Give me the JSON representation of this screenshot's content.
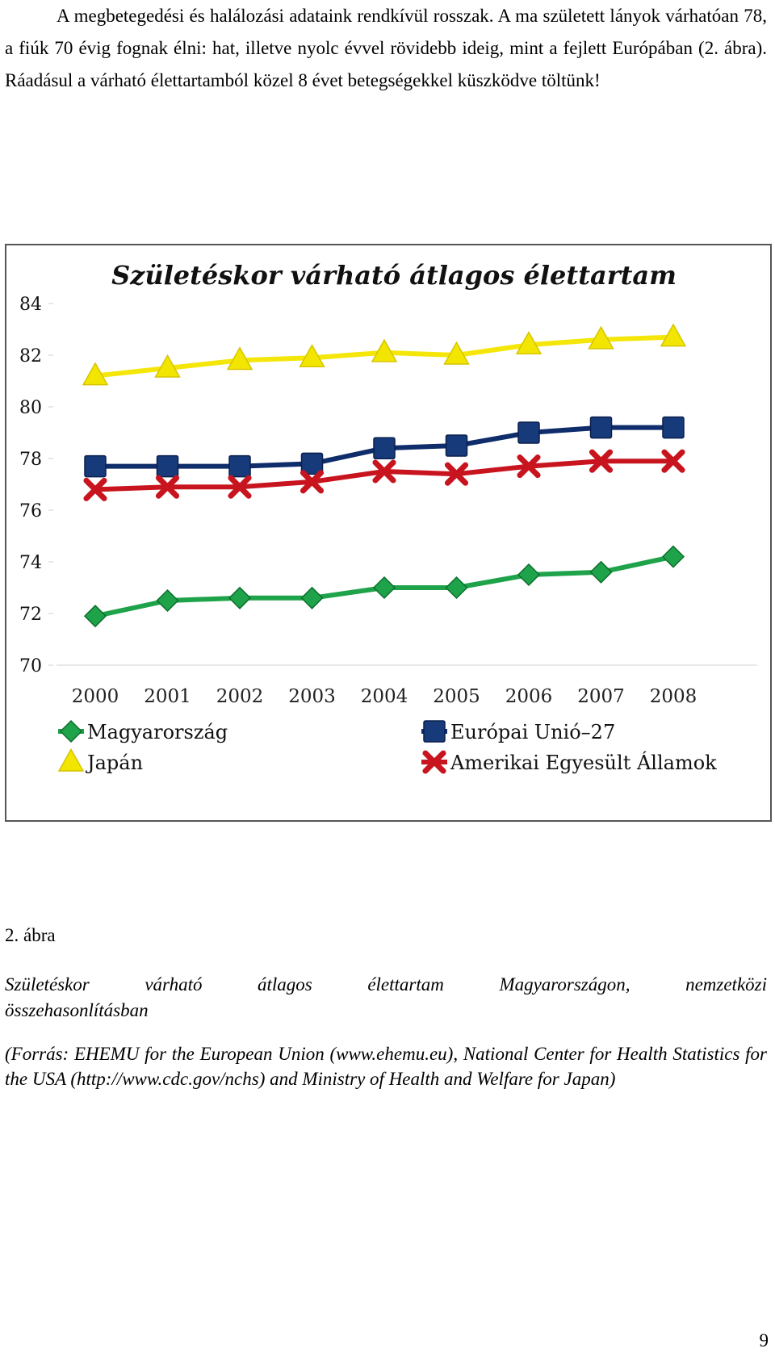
{
  "paragraph": {
    "text": "A megbetegedési és halálozási adataink rendkívül rosszak. A ma született lányok várhatóan 78, a fiúk 70 évig fognak élni: hat, illetve nyolc évvel rövidebb ideig, mint a fejlett Európában (2. ábra). Ráadásul a várható élettartamból közel 8 évet betegségekkel küszködve töltünk!"
  },
  "figure": {
    "label": "2. ábra",
    "caption_words": [
      "Születéskor",
      "várható",
      "átlagos",
      "élettartam",
      "Magyarországon,",
      "nemzetközi"
    ],
    "caption_line2": "összehasonlításban",
    "source": "(Forrás: EHEMU for the European Union (www.ehemu.eu), National Center for Health Statistics for the USA (http://www.cdc.gov/nchs) and Ministry of Health and Welfare for Japan)"
  },
  "page_number": "9",
  "chart_data": {
    "type": "line",
    "title": "Születéskor várható átlagos élettartam",
    "xlabel": "",
    "ylabel": "",
    "categories": [
      "2000",
      "2001",
      "2002",
      "2003",
      "2004",
      "2005",
      "2006",
      "2007",
      "2008"
    ],
    "ylim": [
      70,
      84
    ],
    "yticks": [
      70,
      72,
      74,
      76,
      78,
      80,
      82,
      84
    ],
    "grid": false,
    "legend_position": "bottom",
    "series": [
      {
        "name": "Magyarország",
        "marker": "diamond",
        "color": "#1fa34a",
        "marker_color": "#1fa34a",
        "values": [
          71.9,
          72.5,
          72.6,
          72.6,
          73.0,
          73.0,
          73.5,
          73.6,
          74.2
        ]
      },
      {
        "name": "Európai Unió–27",
        "marker": "square",
        "color": "#0f2d6b",
        "marker_color": "#173a7a",
        "values": [
          77.7,
          77.7,
          77.7,
          77.8,
          78.4,
          78.5,
          79.0,
          79.2,
          79.2
        ]
      },
      {
        "name": "Japán",
        "marker": "triangle",
        "color": "#f5e60a",
        "marker_color": "#f2e600",
        "values": [
          81.2,
          81.5,
          81.8,
          81.9,
          82.1,
          82.0,
          82.4,
          82.6,
          82.7
        ]
      },
      {
        "name": "Amerikai Egyesült Államok",
        "marker": "x",
        "color": "#c8141e",
        "marker_color": "#c8141e",
        "values": [
          76.8,
          76.9,
          76.9,
          77.1,
          77.5,
          77.4,
          77.7,
          77.9,
          77.9
        ]
      }
    ]
  }
}
